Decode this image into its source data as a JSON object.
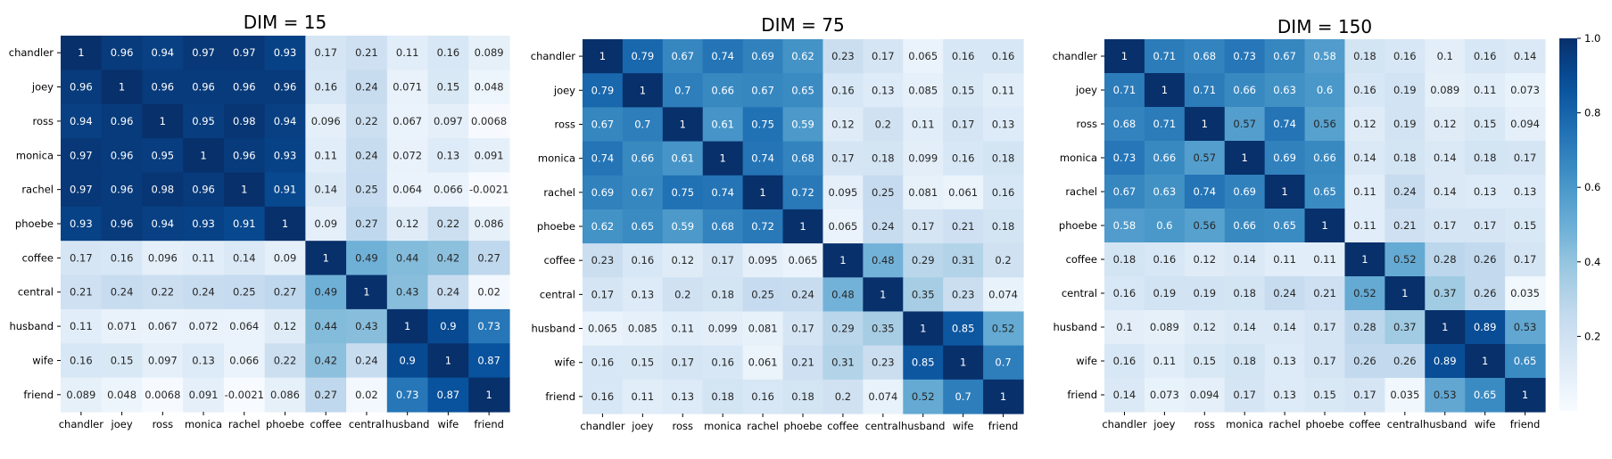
{
  "chart_data": [
    {
      "type": "heatmap",
      "title": "DIM = 15",
      "categories": [
        "chandler",
        "joey",
        "ross",
        "monica",
        "rachel",
        "phoebe",
        "coffee",
        "central",
        "husband",
        "wife",
        "friend"
      ],
      "values": [
        [
          1,
          0.96,
          0.94,
          0.97,
          0.97,
          0.93,
          0.17,
          0.21,
          0.11,
          0.16,
          0.089
        ],
        [
          0.96,
          1,
          0.96,
          0.96,
          0.96,
          0.96,
          0.16,
          0.24,
          0.071,
          0.15,
          0.048
        ],
        [
          0.94,
          0.96,
          1,
          0.95,
          0.98,
          0.94,
          0.096,
          0.22,
          0.067,
          0.097,
          0.0068
        ],
        [
          0.97,
          0.96,
          0.95,
          1,
          0.96,
          0.93,
          0.11,
          0.24,
          0.072,
          0.13,
          0.091
        ],
        [
          0.97,
          0.96,
          0.98,
          0.96,
          1,
          0.91,
          0.14,
          0.25,
          0.064,
          0.066,
          -0.0021
        ],
        [
          0.93,
          0.96,
          0.94,
          0.93,
          0.91,
          1,
          0.09,
          0.27,
          0.12,
          0.22,
          0.086
        ],
        [
          0.17,
          0.16,
          0.096,
          0.11,
          0.14,
          0.09,
          1,
          0.49,
          0.44,
          0.42,
          0.27
        ],
        [
          0.21,
          0.24,
          0.22,
          0.24,
          0.25,
          0.27,
          0.49,
          1,
          0.43,
          0.24,
          0.02
        ],
        [
          0.11,
          0.071,
          0.067,
          0.072,
          0.064,
          0.12,
          0.44,
          0.43,
          1,
          0.9,
          0.73
        ],
        [
          0.16,
          0.15,
          0.097,
          0.13,
          0.066,
          0.22,
          0.42,
          0.24,
          0.9,
          1,
          0.87
        ],
        [
          0.089,
          0.048,
          0.0068,
          0.091,
          -0.0021,
          0.086,
          0.27,
          0.02,
          0.73,
          0.87,
          1
        ]
      ],
      "labels": [
        [
          "1",
          "0.96",
          "0.94",
          "0.97",
          "0.97",
          "0.93",
          "0.17",
          "0.21",
          "0.11",
          "0.16",
          "0.089"
        ],
        [
          "0.96",
          "1",
          "0.96",
          "0.96",
          "0.96",
          "0.96",
          "0.16",
          "0.24",
          "0.071",
          "0.15",
          "0.048"
        ],
        [
          "0.94",
          "0.96",
          "1",
          "0.95",
          "0.98",
          "0.94",
          "0.096",
          "0.22",
          "0.067",
          "0.097",
          "0.0068"
        ],
        [
          "0.97",
          "0.96",
          "0.95",
          "1",
          "0.96",
          "0.93",
          "0.11",
          "0.24",
          "0.072",
          "0.13",
          "0.091"
        ],
        [
          "0.97",
          "0.96",
          "0.98",
          "0.96",
          "1",
          "0.91",
          "0.14",
          "0.25",
          "0.064",
          "0.066",
          "-0.0021"
        ],
        [
          "0.93",
          "0.96",
          "0.94",
          "0.93",
          "0.91",
          "1",
          "0.09",
          "0.27",
          "0.12",
          "0.22",
          "0.086"
        ],
        [
          "0.17",
          "0.16",
          "0.096",
          "0.11",
          "0.14",
          "0.09",
          "1",
          "0.49",
          "0.44",
          "0.42",
          "0.27"
        ],
        [
          "0.21",
          "0.24",
          "0.22",
          "0.24",
          "0.25",
          "0.27",
          "0.49",
          "1",
          "0.43",
          "0.24",
          "0.02"
        ],
        [
          "0.11",
          "0.071",
          "0.067",
          "0.072",
          "0.064",
          "0.12",
          "0.44",
          "0.43",
          "1",
          "0.9",
          "0.73"
        ],
        [
          "0.16",
          "0.15",
          "0.097",
          "0.13",
          "0.066",
          "0.22",
          "0.42",
          "0.24",
          "0.9",
          "1",
          "0.87"
        ],
        [
          "0.089",
          "0.048",
          "0.0068",
          "0.091",
          "-0.0021",
          "0.086",
          "0.27",
          "0.02",
          "0.73",
          "0.87",
          "1"
        ]
      ]
    },
    {
      "type": "heatmap",
      "title": "DIM = 75",
      "categories": [
        "chandler",
        "joey",
        "ross",
        "monica",
        "rachel",
        "phoebe",
        "coffee",
        "central",
        "husband",
        "wife",
        "friend"
      ],
      "values": [
        [
          1,
          0.79,
          0.67,
          0.74,
          0.69,
          0.62,
          0.23,
          0.17,
          0.065,
          0.16,
          0.16
        ],
        [
          0.79,
          1,
          0.7,
          0.66,
          0.67,
          0.65,
          0.16,
          0.13,
          0.085,
          0.15,
          0.11
        ],
        [
          0.67,
          0.7,
          1,
          0.61,
          0.75,
          0.59,
          0.12,
          0.2,
          0.11,
          0.17,
          0.13
        ],
        [
          0.74,
          0.66,
          0.61,
          1,
          0.74,
          0.68,
          0.17,
          0.18,
          0.099,
          0.16,
          0.18
        ],
        [
          0.69,
          0.67,
          0.75,
          0.74,
          1,
          0.72,
          0.095,
          0.25,
          0.081,
          0.061,
          0.16
        ],
        [
          0.62,
          0.65,
          0.59,
          0.68,
          0.72,
          1,
          0.065,
          0.24,
          0.17,
          0.21,
          0.18
        ],
        [
          0.23,
          0.16,
          0.12,
          0.17,
          0.095,
          0.065,
          1,
          0.48,
          0.29,
          0.31,
          0.2
        ],
        [
          0.17,
          0.13,
          0.2,
          0.18,
          0.25,
          0.24,
          0.48,
          1,
          0.35,
          0.23,
          0.074
        ],
        [
          0.065,
          0.085,
          0.11,
          0.099,
          0.081,
          0.17,
          0.29,
          0.35,
          1,
          0.85,
          0.52
        ],
        [
          0.16,
          0.15,
          0.17,
          0.16,
          0.061,
          0.21,
          0.31,
          0.23,
          0.85,
          1,
          0.7
        ],
        [
          0.16,
          0.11,
          0.13,
          0.18,
          0.16,
          0.18,
          0.2,
          0.074,
          0.52,
          0.7,
          1
        ]
      ],
      "labels": [
        [
          "1",
          "0.79",
          "0.67",
          "0.74",
          "0.69",
          "0.62",
          "0.23",
          "0.17",
          "0.065",
          "0.16",
          "0.16"
        ],
        [
          "0.79",
          "1",
          "0.7",
          "0.66",
          "0.67",
          "0.65",
          "0.16",
          "0.13",
          "0.085",
          "0.15",
          "0.11"
        ],
        [
          "0.67",
          "0.7",
          "1",
          "0.61",
          "0.75",
          "0.59",
          "0.12",
          "0.2",
          "0.11",
          "0.17",
          "0.13"
        ],
        [
          "0.74",
          "0.66",
          "0.61",
          "1",
          "0.74",
          "0.68",
          "0.17",
          "0.18",
          "0.099",
          "0.16",
          "0.18"
        ],
        [
          "0.69",
          "0.67",
          "0.75",
          "0.74",
          "1",
          "0.72",
          "0.095",
          "0.25",
          "0.081",
          "0.061",
          "0.16"
        ],
        [
          "0.62",
          "0.65",
          "0.59",
          "0.68",
          "0.72",
          "1",
          "0.065",
          "0.24",
          "0.17",
          "0.21",
          "0.18"
        ],
        [
          "0.23",
          "0.16",
          "0.12",
          "0.17",
          "0.095",
          "0.065",
          "1",
          "0.48",
          "0.29",
          "0.31",
          "0.2"
        ],
        [
          "0.17",
          "0.13",
          "0.2",
          "0.18",
          "0.25",
          "0.24",
          "0.48",
          "1",
          "0.35",
          "0.23",
          "0.074"
        ],
        [
          "0.065",
          "0.085",
          "0.11",
          "0.099",
          "0.081",
          "0.17",
          "0.29",
          "0.35",
          "1",
          "0.85",
          "0.52"
        ],
        [
          "0.16",
          "0.15",
          "0.17",
          "0.16",
          "0.061",
          "0.21",
          "0.31",
          "0.23",
          "0.85",
          "1",
          "0.7"
        ],
        [
          "0.16",
          "0.11",
          "0.13",
          "0.18",
          "0.16",
          "0.18",
          "0.2",
          "0.074",
          "0.52",
          "0.7",
          "1"
        ]
      ]
    },
    {
      "type": "heatmap",
      "title": "DIM = 150",
      "categories": [
        "chandler",
        "joey",
        "ross",
        "monica",
        "rachel",
        "phoebe",
        "coffee",
        "central",
        "husband",
        "wife",
        "friend"
      ],
      "values": [
        [
          1,
          0.71,
          0.68,
          0.73,
          0.67,
          0.58,
          0.18,
          0.16,
          0.1,
          0.16,
          0.14
        ],
        [
          0.71,
          1,
          0.71,
          0.66,
          0.63,
          0.6,
          0.16,
          0.19,
          0.089,
          0.11,
          0.073
        ],
        [
          0.68,
          0.71,
          1,
          0.57,
          0.74,
          0.56,
          0.12,
          0.19,
          0.12,
          0.15,
          0.094
        ],
        [
          0.73,
          0.66,
          0.57,
          1,
          0.69,
          0.66,
          0.14,
          0.18,
          0.14,
          0.18,
          0.17
        ],
        [
          0.67,
          0.63,
          0.74,
          0.69,
          1,
          0.65,
          0.11,
          0.24,
          0.14,
          0.13,
          0.13
        ],
        [
          0.58,
          0.6,
          0.56,
          0.66,
          0.65,
          1,
          0.11,
          0.21,
          0.17,
          0.17,
          0.15
        ],
        [
          0.18,
          0.16,
          0.12,
          0.14,
          0.11,
          0.11,
          1,
          0.52,
          0.28,
          0.26,
          0.17
        ],
        [
          0.16,
          0.19,
          0.19,
          0.18,
          0.24,
          0.21,
          0.52,
          1,
          0.37,
          0.26,
          0.035
        ],
        [
          0.1,
          0.089,
          0.12,
          0.14,
          0.14,
          0.17,
          0.28,
          0.37,
          1,
          0.89,
          0.53
        ],
        [
          0.16,
          0.11,
          0.15,
          0.18,
          0.13,
          0.17,
          0.26,
          0.26,
          0.89,
          1,
          0.65
        ],
        [
          0.14,
          0.073,
          0.094,
          0.17,
          0.13,
          0.15,
          0.17,
          0.035,
          0.53,
          0.65,
          1
        ]
      ],
      "labels": [
        [
          "1",
          "0.71",
          "0.68",
          "0.73",
          "0.67",
          "0.58",
          "0.18",
          "0.16",
          "0.1",
          "0.16",
          "0.14"
        ],
        [
          "0.71",
          "1",
          "0.71",
          "0.66",
          "0.63",
          "0.6",
          "0.16",
          "0.19",
          "0.089",
          "0.11",
          "0.073"
        ],
        [
          "0.68",
          "0.71",
          "1",
          "0.57",
          "0.74",
          "0.56",
          "0.12",
          "0.19",
          "0.12",
          "0.15",
          "0.094"
        ],
        [
          "0.73",
          "0.66",
          "0.57",
          "1",
          "0.69",
          "0.66",
          "0.14",
          "0.18",
          "0.14",
          "0.18",
          "0.17"
        ],
        [
          "0.67",
          "0.63",
          "0.74",
          "0.69",
          "1",
          "0.65",
          "0.11",
          "0.24",
          "0.14",
          "0.13",
          "0.13"
        ],
        [
          "0.58",
          "0.6",
          "0.56",
          "0.66",
          "0.65",
          "1",
          "0.11",
          "0.21",
          "0.17",
          "0.17",
          "0.15"
        ],
        [
          "0.18",
          "0.16",
          "0.12",
          "0.14",
          "0.11",
          "0.11",
          "1",
          "0.52",
          "0.28",
          "0.26",
          "0.17"
        ],
        [
          "0.16",
          "0.19",
          "0.19",
          "0.18",
          "0.24",
          "0.21",
          "0.52",
          "1",
          "0.37",
          "0.26",
          "0.035"
        ],
        [
          "0.1",
          "0.089",
          "0.12",
          "0.14",
          "0.14",
          "0.17",
          "0.28",
          "0.37",
          "1",
          "0.89",
          "0.53"
        ],
        [
          "0.16",
          "0.11",
          "0.15",
          "0.18",
          "0.13",
          "0.17",
          "0.26",
          "0.26",
          "0.89",
          "1",
          "0.65"
        ],
        [
          "0.14",
          "0.073",
          "0.094",
          "0.17",
          "0.13",
          "0.15",
          "0.17",
          "0.035",
          "0.53",
          "0.65",
          "1"
        ]
      ]
    }
  ],
  "colorbar": {
    "colormap": "Blues",
    "range": [
      0,
      1.0
    ],
    "ticks": [
      0.2,
      0.4,
      0.6,
      0.8,
      1.0
    ],
    "tick_labels": [
      "0.2",
      "0.4",
      "0.6",
      "0.8",
      "1.0"
    ]
  }
}
